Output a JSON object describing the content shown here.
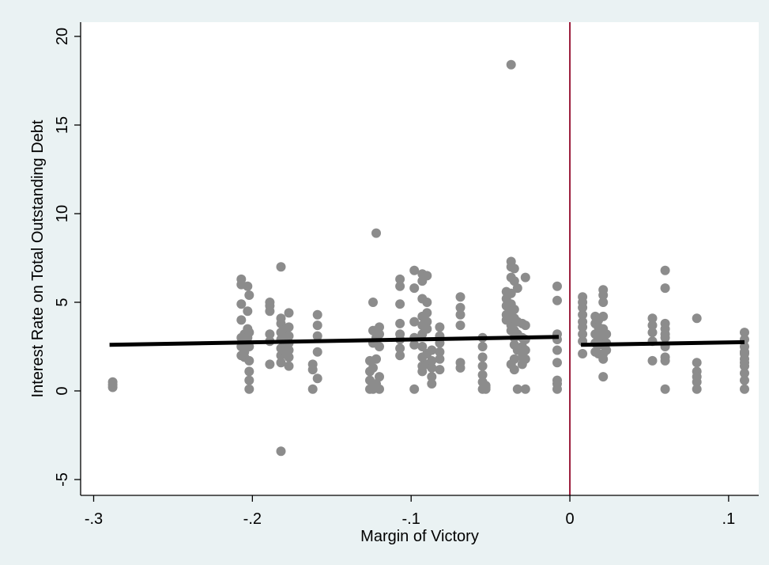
{
  "chart_data": {
    "type": "scatter",
    "xlabel": "Margin of Victory",
    "ylabel": "Interest Rate on Total Outstanding Debt",
    "xlim": [
      -0.3,
      0.12
    ],
    "ylim": [
      -5.6,
      20.8
    ],
    "x_ticks": [
      {
        "value": -0.3,
        "label": "-.3"
      },
      {
        "value": -0.2,
        "label": "-.2"
      },
      {
        "value": -0.1,
        "label": "-.1"
      },
      {
        "value": 0,
        "label": "0"
      },
      {
        "value": 0.1,
        "label": ".1"
      }
    ],
    "y_ticks": [
      {
        "value": -5,
        "label": "-5"
      },
      {
        "value": 0,
        "label": "0"
      },
      {
        "value": 5,
        "label": "5"
      },
      {
        "value": 10,
        "label": "10"
      },
      {
        "value": 15,
        "label": "15"
      },
      {
        "value": 20,
        "label": "20"
      }
    ],
    "grid": false,
    "legend": "none",
    "cutoff_line": {
      "x": 0,
      "color": "#9b1b3a"
    },
    "fit_lines": [
      {
        "x": [
          -0.29,
          -0.007
        ],
        "y": [
          2.6,
          3.05
        ],
        "color": "#000000"
      },
      {
        "x": [
          0.007,
          0.11
        ],
        "y": [
          2.6,
          2.75
        ],
        "color": "#000000"
      }
    ],
    "point_color": "#8c8c8c",
    "points": [
      [
        -0.288,
        0.2
      ],
      [
        -0.288,
        0.35
      ],
      [
        -0.288,
        0.5
      ],
      [
        -0.207,
        6.3
      ],
      [
        -0.207,
        6.0
      ],
      [
        -0.207,
        4.9
      ],
      [
        -0.207,
        4.0
      ],
      [
        -0.207,
        3.0
      ],
      [
        -0.207,
        2.5
      ],
      [
        -0.207,
        2.0
      ],
      [
        -0.205,
        3.2
      ],
      [
        -0.205,
        2.7
      ],
      [
        -0.205,
        2.2
      ],
      [
        -0.205,
        1.9
      ],
      [
        -0.203,
        5.9
      ],
      [
        -0.203,
        4.5
      ],
      [
        -0.203,
        3.5
      ],
      [
        -0.203,
        3.0
      ],
      [
        -0.202,
        5.4
      ],
      [
        -0.202,
        3.3
      ],
      [
        -0.202,
        2.5
      ],
      [
        -0.202,
        1.7
      ],
      [
        -0.202,
        1.1
      ],
      [
        -0.202,
        0.6
      ],
      [
        -0.202,
        0.1
      ],
      [
        -0.189,
        5.0
      ],
      [
        -0.189,
        4.8
      ],
      [
        -0.189,
        4.5
      ],
      [
        -0.189,
        3.2
      ],
      [
        -0.189,
        2.8
      ],
      [
        -0.189,
        1.5
      ],
      [
        -0.182,
        7.0
      ],
      [
        -0.182,
        4.1
      ],
      [
        -0.182,
        3.8
      ],
      [
        -0.182,
        3.3
      ],
      [
        -0.182,
        2.9
      ],
      [
        -0.182,
        2.4
      ],
      [
        -0.182,
        2.0
      ],
      [
        -0.182,
        1.6
      ],
      [
        -0.182,
        -3.4
      ],
      [
        -0.179,
        3.5
      ],
      [
        -0.179,
        3.0
      ],
      [
        -0.179,
        2.6
      ],
      [
        -0.179,
        2.2
      ],
      [
        -0.177,
        4.4
      ],
      [
        -0.177,
        3.6
      ],
      [
        -0.177,
        3.1
      ],
      [
        -0.177,
        2.7
      ],
      [
        -0.177,
        2.3
      ],
      [
        -0.177,
        1.9
      ],
      [
        -0.177,
        1.4
      ],
      [
        -0.162,
        1.5
      ],
      [
        -0.162,
        1.2
      ],
      [
        -0.162,
        0.1
      ],
      [
        -0.159,
        4.3
      ],
      [
        -0.159,
        3.7
      ],
      [
        -0.159,
        3.1
      ],
      [
        -0.159,
        2.2
      ],
      [
        -0.159,
        0.7
      ],
      [
        -0.126,
        1.7
      ],
      [
        -0.126,
        1.1
      ],
      [
        -0.126,
        0.6
      ],
      [
        -0.126,
        0.1
      ],
      [
        -0.124,
        5.0
      ],
      [
        -0.124,
        3.4
      ],
      [
        -0.124,
        2.7
      ],
      [
        -0.124,
        1.3
      ],
      [
        -0.124,
        0.1
      ],
      [
        -0.122,
        8.9
      ],
      [
        -0.122,
        3.0
      ],
      [
        -0.122,
        1.8
      ],
      [
        -0.122,
        0.4
      ],
      [
        -0.12,
        3.6
      ],
      [
        -0.12,
        3.2
      ],
      [
        -0.12,
        2.5
      ],
      [
        -0.12,
        0.8
      ],
      [
        -0.12,
        0.1
      ],
      [
        -0.107,
        6.3
      ],
      [
        -0.107,
        5.9
      ],
      [
        -0.107,
        4.9
      ],
      [
        -0.107,
        3.8
      ],
      [
        -0.107,
        3.2
      ],
      [
        -0.107,
        2.9
      ],
      [
        -0.107,
        2.4
      ],
      [
        -0.107,
        2.0
      ],
      [
        -0.098,
        6.8
      ],
      [
        -0.098,
        5.8
      ],
      [
        -0.098,
        3.9
      ],
      [
        -0.098,
        3.0
      ],
      [
        -0.098,
        2.6
      ],
      [
        -0.098,
        0.1
      ],
      [
        -0.093,
        6.6
      ],
      [
        -0.093,
        6.2
      ],
      [
        -0.093,
        5.2
      ],
      [
        -0.093,
        4.2
      ],
      [
        -0.093,
        3.7
      ],
      [
        -0.093,
        3.2
      ],
      [
        -0.093,
        2.5
      ],
      [
        -0.093,
        1.9
      ],
      [
        -0.093,
        1.4
      ],
      [
        -0.093,
        1.1
      ],
      [
        -0.09,
        6.5
      ],
      [
        -0.09,
        5.0
      ],
      [
        -0.09,
        4.4
      ],
      [
        -0.09,
        3.9
      ],
      [
        -0.09,
        3.5
      ],
      [
        -0.09,
        2.1
      ],
      [
        -0.09,
        1.5
      ],
      [
        -0.087,
        2.3
      ],
      [
        -0.087,
        1.7
      ],
      [
        -0.087,
        1.3
      ],
      [
        -0.087,
        0.8
      ],
      [
        -0.087,
        0.4
      ],
      [
        -0.082,
        3.6
      ],
      [
        -0.082,
        3.1
      ],
      [
        -0.082,
        2.7
      ],
      [
        -0.082,
        2.2
      ],
      [
        -0.082,
        1.8
      ],
      [
        -0.082,
        1.2
      ],
      [
        -0.069,
        5.3
      ],
      [
        -0.069,
        4.7
      ],
      [
        -0.069,
        4.3
      ],
      [
        -0.069,
        3.7
      ],
      [
        -0.069,
        1.6
      ],
      [
        -0.069,
        1.3
      ],
      [
        -0.055,
        3.0
      ],
      [
        -0.055,
        2.5
      ],
      [
        -0.055,
        1.9
      ],
      [
        -0.055,
        1.4
      ],
      [
        -0.055,
        0.9
      ],
      [
        -0.055,
        0.5
      ],
      [
        -0.055,
        0.1
      ],
      [
        -0.053,
        0.1
      ],
      [
        -0.053,
        0.3
      ],
      [
        -0.053,
        0.2
      ],
      [
        -0.04,
        5.6
      ],
      [
        -0.04,
        5.2
      ],
      [
        -0.04,
        4.8
      ],
      [
        -0.04,
        4.3
      ],
      [
        -0.04,
        4.0
      ],
      [
        -0.037,
        7.3
      ],
      [
        -0.037,
        7.0
      ],
      [
        -0.037,
        6.4
      ],
      [
        -0.037,
        5.5
      ],
      [
        -0.037,
        4.9
      ],
      [
        -0.037,
        4.5
      ],
      [
        -0.037,
        4.2
      ],
      [
        -0.037,
        3.7
      ],
      [
        -0.037,
        3.4
      ],
      [
        -0.037,
        1.5
      ],
      [
        -0.037,
        18.4
      ],
      [
        -0.035,
        6.9
      ],
      [
        -0.035,
        6.2
      ],
      [
        -0.035,
        4.6
      ],
      [
        -0.035,
        4.1
      ],
      [
        -0.035,
        3.4
      ],
      [
        -0.035,
        3.0
      ],
      [
        -0.035,
        2.6
      ],
      [
        -0.035,
        1.8
      ],
      [
        -0.035,
        1.2
      ],
      [
        -0.033,
        5.8
      ],
      [
        -0.033,
        3.9
      ],
      [
        -0.033,
        3.2
      ],
      [
        -0.033,
        2.3
      ],
      [
        -0.033,
        0.1
      ],
      [
        -0.03,
        3.8
      ],
      [
        -0.03,
        3.0
      ],
      [
        -0.03,
        2.5
      ],
      [
        -0.03,
        1.9
      ],
      [
        -0.03,
        1.5
      ],
      [
        -0.028,
        6.4
      ],
      [
        -0.028,
        3.7
      ],
      [
        -0.028,
        2.9
      ],
      [
        -0.028,
        2.3
      ],
      [
        -0.028,
        1.8
      ],
      [
        -0.028,
        0.1
      ],
      [
        -0.008,
        5.9
      ],
      [
        -0.008,
        5.1
      ],
      [
        -0.008,
        3.2
      ],
      [
        -0.008,
        2.9
      ],
      [
        -0.008,
        2.3
      ],
      [
        -0.008,
        1.6
      ],
      [
        -0.008,
        0.6
      ],
      [
        -0.008,
        0.4
      ],
      [
        -0.008,
        0.1
      ],
      [
        0.008,
        5.3
      ],
      [
        0.008,
        5.0
      ],
      [
        0.008,
        4.7
      ],
      [
        0.008,
        4.3
      ],
      [
        0.008,
        3.9
      ],
      [
        0.008,
        3.6
      ],
      [
        0.008,
        3.2
      ],
      [
        0.008,
        2.8
      ],
      [
        0.008,
        2.1
      ],
      [
        0.016,
        4.2
      ],
      [
        0.016,
        3.8
      ],
      [
        0.016,
        3.2
      ],
      [
        0.016,
        2.7
      ],
      [
        0.016,
        2.2
      ],
      [
        0.018,
        4.0
      ],
      [
        0.018,
        3.6
      ],
      [
        0.018,
        3.1
      ],
      [
        0.018,
        2.6
      ],
      [
        0.018,
        2.1
      ],
      [
        0.021,
        5.7
      ],
      [
        0.021,
        5.4
      ],
      [
        0.021,
        5.0
      ],
      [
        0.021,
        4.2
      ],
      [
        0.021,
        3.5
      ],
      [
        0.021,
        3.0
      ],
      [
        0.021,
        2.6
      ],
      [
        0.021,
        2.1
      ],
      [
        0.021,
        1.8
      ],
      [
        0.021,
        0.8
      ],
      [
        0.023,
        3.2
      ],
      [
        0.023,
        2.7
      ],
      [
        0.023,
        2.3
      ],
      [
        0.052,
        4.1
      ],
      [
        0.052,
        3.7
      ],
      [
        0.052,
        3.3
      ],
      [
        0.052,
        2.8
      ],
      [
        0.052,
        1.7
      ],
      [
        0.06,
        6.8
      ],
      [
        0.06,
        5.8
      ],
      [
        0.06,
        3.8
      ],
      [
        0.06,
        3.5
      ],
      [
        0.06,
        3.0
      ],
      [
        0.06,
        2.6
      ],
      [
        0.06,
        1.9
      ],
      [
        0.06,
        1.7
      ],
      [
        0.06,
        0.1
      ],
      [
        0.06,
        3.2
      ],
      [
        0.06,
        2.5
      ],
      [
        0.08,
        4.1
      ],
      [
        0.08,
        1.6
      ],
      [
        0.08,
        1.1
      ],
      [
        0.08,
        0.8
      ],
      [
        0.08,
        0.5
      ],
      [
        0.08,
        0.1
      ],
      [
        0.11,
        3.3
      ],
      [
        0.11,
        2.9
      ],
      [
        0.11,
        2.5
      ],
      [
        0.11,
        2.1
      ],
      [
        0.11,
        1.8
      ],
      [
        0.11,
        1.4
      ],
      [
        0.11,
        1.0
      ],
      [
        0.11,
        0.6
      ],
      [
        0.11,
        0.1
      ],
      [
        0.11,
        2.2
      ],
      [
        0.11,
        1.6
      ]
    ]
  }
}
